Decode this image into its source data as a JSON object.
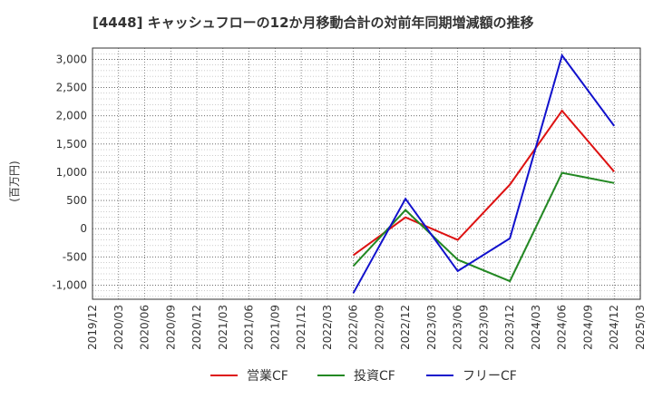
{
  "chart_data": {
    "type": "line",
    "title": "[4448]  キャッシュフローの12か月移動合計の対前年同期増減額の推移",
    "ylabel": "(百万円)",
    "x": [
      "2019/12",
      "2020/03",
      "2020/06",
      "2020/09",
      "2020/12",
      "2021/03",
      "2021/06",
      "2021/09",
      "2021/12",
      "2022/03",
      "2022/06",
      "2022/09",
      "2022/12",
      "2023/03",
      "2023/06",
      "2023/09",
      "2023/12",
      "2024/03",
      "2024/06",
      "2024/09",
      "2024/12",
      "2025/03"
    ],
    "yticks": [
      -1000,
      -500,
      0,
      500,
      1000,
      1500,
      2000,
      2500,
      3000
    ],
    "ytick_labels": [
      "-1,000",
      "-500",
      "0",
      "500",
      "1,000",
      "1,500",
      "2,000",
      "2,500",
      "3,000"
    ],
    "ylim": [
      -1250,
      3200
    ],
    "grid": true,
    "legend_position": "bottom",
    "series": [
      {
        "name": "営業CF",
        "color": "#dd1111",
        "points": [
          [
            "2022/06",
            -470
          ],
          [
            "2022/12",
            200
          ],
          [
            "2023/06",
            -200
          ],
          [
            "2023/12",
            780
          ],
          [
            "2024/06",
            2090
          ],
          [
            "2024/12",
            1010
          ]
        ]
      },
      {
        "name": "投資CF",
        "color": "#228822",
        "points": [
          [
            "2022/06",
            -660
          ],
          [
            "2022/12",
            330
          ],
          [
            "2023/06",
            -550
          ],
          [
            "2023/12",
            -930
          ],
          [
            "2024/06",
            990
          ],
          [
            "2024/12",
            810
          ]
        ]
      },
      {
        "name": "フリーCF",
        "color": "#1111cc",
        "points": [
          [
            "2022/06",
            -1140
          ],
          [
            "2022/12",
            530
          ],
          [
            "2023/06",
            -750
          ],
          [
            "2023/12",
            -170
          ],
          [
            "2024/06",
            3070
          ],
          [
            "2024/12",
            1820
          ]
        ]
      }
    ]
  }
}
